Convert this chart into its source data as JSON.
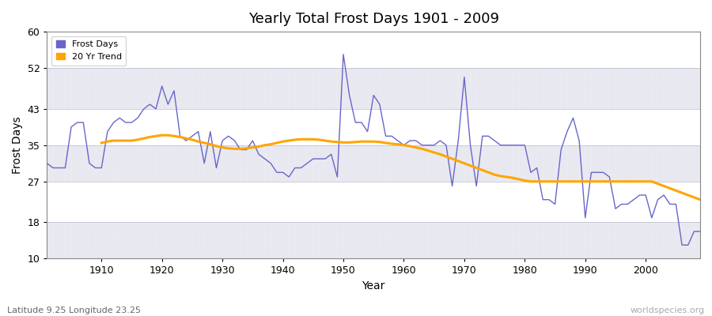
{
  "title": "Yearly Total Frost Days 1901 - 2009",
  "xlabel": "Year",
  "ylabel": "Frost Days",
  "subtitle_left": "Latitude 9.25 Longitude 23.25",
  "subtitle_right": "worldspecies.org",
  "legend_entries": [
    "Frost Days",
    "20 Yr Trend"
  ],
  "line_color": "#6666cc",
  "trend_color": "#FFA500",
  "bg_color": "#e8e8f0",
  "ylim": [
    10,
    60
  ],
  "yticks": [
    10,
    18,
    27,
    35,
    43,
    52,
    60
  ],
  "xlim": [
    1901,
    2009
  ],
  "xticks": [
    1910,
    1920,
    1930,
    1940,
    1950,
    1960,
    1970,
    1980,
    1990,
    2000
  ],
  "years": [
    1901,
    1902,
    1903,
    1904,
    1905,
    1906,
    1907,
    1908,
    1909,
    1910,
    1911,
    1912,
    1913,
    1914,
    1915,
    1916,
    1917,
    1918,
    1919,
    1920,
    1921,
    1922,
    1923,
    1924,
    1925,
    1926,
    1927,
    1928,
    1929,
    1930,
    1931,
    1932,
    1933,
    1934,
    1935,
    1936,
    1937,
    1938,
    1939,
    1940,
    1941,
    1942,
    1943,
    1944,
    1945,
    1946,
    1947,
    1948,
    1949,
    1950,
    1951,
    1952,
    1953,
    1954,
    1955,
    1956,
    1957,
    1958,
    1959,
    1960,
    1961,
    1962,
    1963,
    1964,
    1965,
    1966,
    1967,
    1968,
    1969,
    1970,
    1971,
    1972,
    1973,
    1974,
    1975,
    1976,
    1977,
    1978,
    1979,
    1980,
    1981,
    1982,
    1983,
    1984,
    1985,
    1986,
    1987,
    1988,
    1989,
    1990,
    1991,
    1992,
    1993,
    1994,
    1995,
    1996,
    1997,
    1998,
    1999,
    2000,
    2001,
    2002,
    2003,
    2004,
    2005,
    2006,
    2007,
    2008,
    2009
  ],
  "frost_days": [
    31,
    30,
    30,
    30,
    39,
    40,
    40,
    31,
    30,
    30,
    38,
    40,
    41,
    40,
    40,
    41,
    43,
    44,
    43,
    48,
    44,
    47,
    37,
    36,
    37,
    38,
    31,
    38,
    30,
    36,
    37,
    36,
    34,
    34,
    36,
    33,
    32,
    31,
    29,
    29,
    28,
    30,
    30,
    31,
    32,
    32,
    32,
    33,
    28,
    55,
    46,
    40,
    40,
    38,
    46,
    44,
    37,
    37,
    36,
    35,
    36,
    36,
    35,
    35,
    35,
    36,
    35,
    26,
    36,
    50,
    35,
    26,
    37,
    37,
    36,
    35,
    35,
    35,
    35,
    35,
    29,
    30,
    23,
    23,
    22,
    34,
    38,
    41,
    36,
    19,
    29,
    29,
    29,
    28,
    21,
    22,
    22,
    23,
    24,
    24,
    19,
    23,
    24,
    22,
    22,
    13,
    13,
    16,
    16
  ],
  "trend_years": [
    1910,
    1911,
    1912,
    1913,
    1914,
    1915,
    1916,
    1917,
    1918,
    1919,
    1920,
    1921,
    1922,
    1923,
    1924,
    1925,
    1926,
    1927,
    1928,
    1929,
    1930,
    1931,
    1932,
    1933,
    1934,
    1935,
    1936,
    1937,
    1938,
    1939,
    1940,
    1941,
    1942,
    1943,
    1944,
    1945,
    1946,
    1947,
    1948,
    1949,
    1950,
    1951,
    1952,
    1953,
    1954,
    1955,
    1956,
    1957,
    1958,
    1959,
    1960,
    1961,
    1962,
    1963,
    1964,
    1965,
    1966,
    1967,
    1968,
    1969,
    1970,
    1971,
    1972,
    1973,
    1974,
    1975,
    1976,
    1977,
    1978,
    1979,
    1980,
    1981,
    1982,
    1983,
    1984,
    1985,
    1986,
    1987,
    1988,
    1989,
    1990,
    1991,
    1992,
    1993,
    1994,
    1995,
    1996,
    1997,
    1998,
    1999,
    2000,
    2001,
    2002,
    2003,
    2004,
    2005,
    2006,
    2007,
    2008,
    2009
  ],
  "trend_values": [
    35.5,
    35.8,
    36.0,
    36.0,
    36.0,
    36.0,
    36.2,
    36.5,
    36.8,
    37.0,
    37.2,
    37.2,
    37.0,
    36.8,
    36.5,
    36.2,
    35.8,
    35.5,
    35.2,
    34.8,
    34.5,
    34.3,
    34.2,
    34.2,
    34.3,
    34.5,
    34.7,
    35.0,
    35.2,
    35.5,
    35.8,
    36.0,
    36.2,
    36.3,
    36.3,
    36.3,
    36.2,
    36.0,
    35.8,
    35.7,
    35.6,
    35.6,
    35.7,
    35.8,
    35.8,
    35.8,
    35.7,
    35.5,
    35.3,
    35.2,
    35.0,
    34.8,
    34.5,
    34.2,
    33.8,
    33.4,
    33.0,
    32.5,
    32.0,
    31.5,
    31.0,
    30.5,
    30.0,
    29.5,
    29.0,
    28.5,
    28.2,
    28.0,
    27.8,
    27.5,
    27.2,
    27.0,
    27.0,
    27.0,
    27.0,
    27.0,
    27.0,
    27.0,
    27.0,
    27.0,
    27.0,
    27.0,
    27.0,
    27.0,
    27.0,
    27.0,
    27.0,
    27.0,
    27.0,
    27.0,
    27.0,
    27.0,
    26.5,
    26.0,
    25.5,
    25.0,
    24.5,
    24.0,
    23.5,
    23.0
  ]
}
